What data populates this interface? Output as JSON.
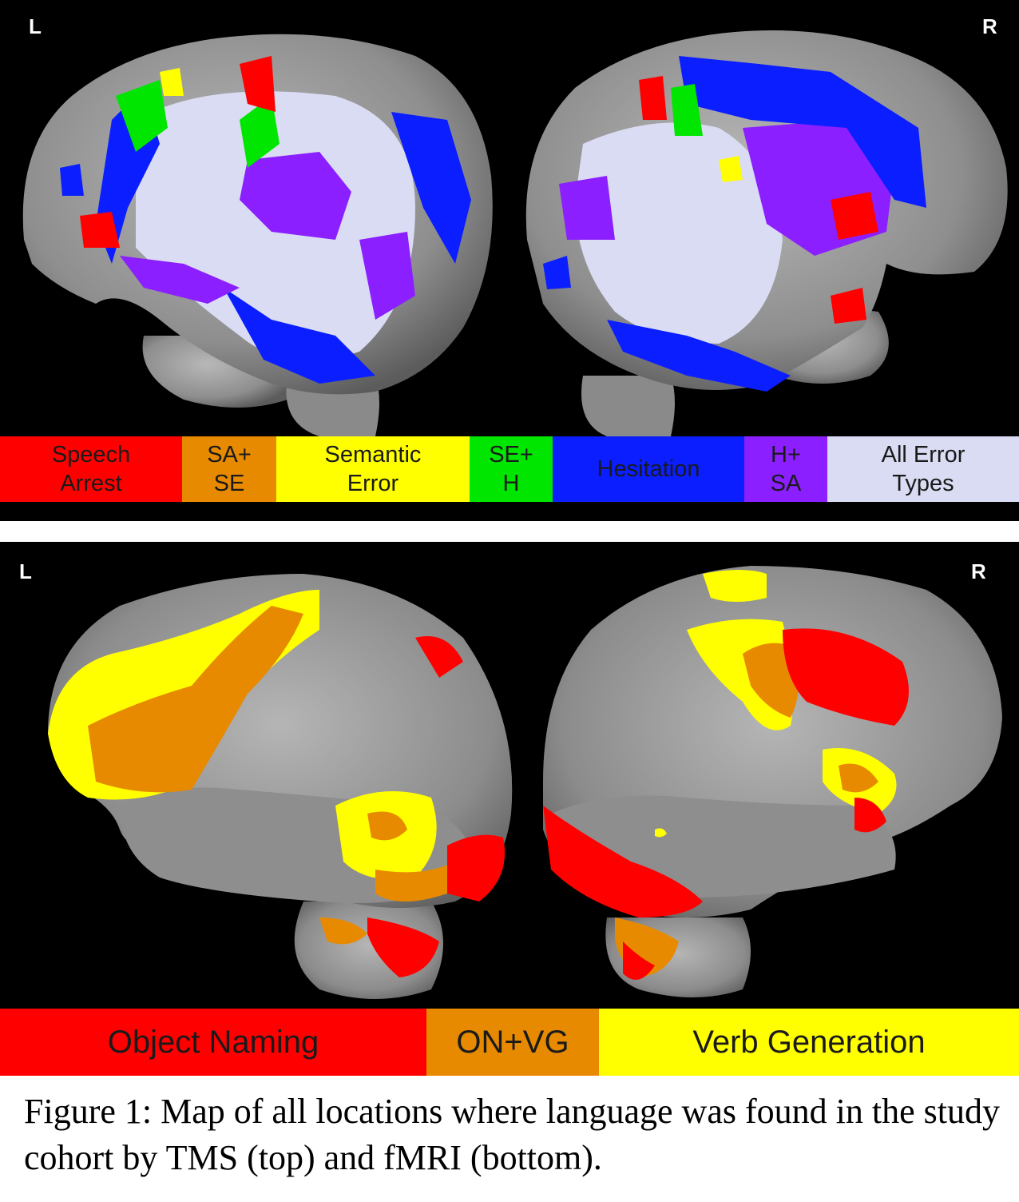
{
  "top_panel": {
    "left_label": "L",
    "right_label": "R",
    "legend": [
      {
        "text": "Speech\nArrest",
        "color": "#ff0000"
      },
      {
        "text": "SA+\nSE",
        "color": "#e88a00"
      },
      {
        "text": "Semantic\nError",
        "color": "#ffff00"
      },
      {
        "text": "SE+\nH",
        "color": "#00e600"
      },
      {
        "text": "Hesitation",
        "color": "#0a1eff"
      },
      {
        "text": "H+\nSA",
        "color": "#8b1fff"
      },
      {
        "text": "All Error\nTypes",
        "color": "#d9dcf2"
      }
    ]
  },
  "bottom_panel": {
    "left_label": "L",
    "right_label": "R",
    "legend": [
      {
        "text": "Object Naming",
        "color": "#ff0000"
      },
      {
        "text": "ON+VG",
        "color": "#e88a00"
      },
      {
        "text": "Verb Generation",
        "color": "#ffff00"
      }
    ]
  },
  "caption": "Figure 1: Map of all locations where language was found in the study cohort by TMS (top) and fMRI (bottom)."
}
